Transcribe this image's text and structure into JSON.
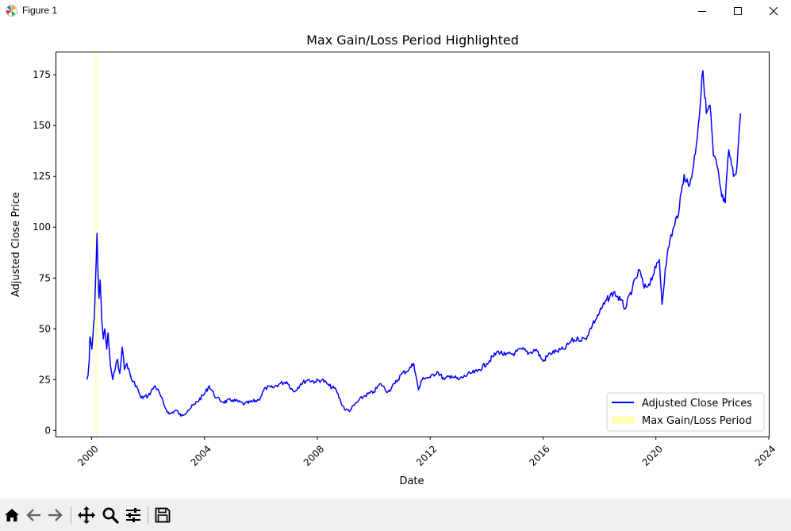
{
  "window": {
    "title": "Figure 1",
    "icon": "matplotlib-icon",
    "controls": [
      "minimize-icon",
      "maximize-icon",
      "close-icon"
    ]
  },
  "toolbar": {
    "buttons": [
      "home-icon",
      "back-icon",
      "forward-icon",
      "pan-icon",
      "zoom-icon",
      "configure-subplots-icon",
      "save-icon"
    ]
  },
  "chart_data": {
    "type": "line",
    "title": "Max Gain/Loss Period Highlighted",
    "xlabel": "Date",
    "ylabel": "Adjusted Close Price",
    "xlim": [
      "1998-10-01",
      "2024-01-01"
    ],
    "ylim": [
      -3,
      186
    ],
    "x_ticks": [
      "2000",
      "2004",
      "2008",
      "2012",
      "2016",
      "2020",
      "2024"
    ],
    "y_ticks": [
      0,
      25,
      50,
      75,
      100,
      125,
      150,
      175
    ],
    "grid": false,
    "legend": {
      "placement": "lower-right",
      "entries": [
        "Adjusted Close Prices",
        "Max Gain/Loss Period"
      ]
    },
    "colors": {
      "line": "#0000ff",
      "highlight": "#ffff66"
    },
    "highlight_period": {
      "start": "2000-02-18",
      "end": "2000-03-10",
      "label": "Max Gain/Loss Period"
    },
    "series": [
      {
        "name": "Adjusted Close Prices",
        "points": [
          [
            "1999-11-01",
            25
          ],
          [
            "1999-11-15",
            27
          ],
          [
            "1999-12-01",
            35
          ],
          [
            "1999-12-10",
            46
          ],
          [
            "1999-12-20",
            44
          ],
          [
            "2000-01-05",
            40
          ],
          [
            "2000-01-20",
            48
          ],
          [
            "2000-02-05",
            55
          ],
          [
            "2000-02-18",
            70
          ],
          [
            "2000-03-01",
            85
          ],
          [
            "2000-03-10",
            97
          ],
          [
            "2000-03-20",
            82
          ],
          [
            "2000-04-05",
            65
          ],
          [
            "2000-04-20",
            74
          ],
          [
            "2000-05-10",
            55
          ],
          [
            "2000-06-01",
            45
          ],
          [
            "2000-06-20",
            50
          ],
          [
            "2000-07-15",
            40
          ],
          [
            "2000-08-01",
            48
          ],
          [
            "2000-09-01",
            32
          ],
          [
            "2000-10-01",
            25
          ],
          [
            "2000-11-01",
            30
          ],
          [
            "2000-12-01",
            35
          ],
          [
            "2001-01-01",
            28
          ],
          [
            "2001-02-01",
            41
          ],
          [
            "2001-03-01",
            30
          ],
          [
            "2001-04-01",
            33
          ],
          [
            "2001-06-01",
            25
          ],
          [
            "2001-08-01",
            22
          ],
          [
            "2001-10-01",
            16
          ],
          [
            "2002-01-01",
            17
          ],
          [
            "2002-04-01",
            22
          ],
          [
            "2002-06-01",
            18
          ],
          [
            "2002-08-01",
            12
          ],
          [
            "2002-10-01",
            8
          ],
          [
            "2003-01-01",
            10
          ],
          [
            "2003-03-01",
            7
          ],
          [
            "2003-06-01",
            10
          ],
          [
            "2003-09-01",
            13
          ],
          [
            "2004-01-01",
            18
          ],
          [
            "2004-03-01",
            22
          ],
          [
            "2004-06-01",
            16
          ],
          [
            "2004-09-01",
            14
          ],
          [
            "2005-01-01",
            15
          ],
          [
            "2005-06-01",
            13
          ],
          [
            "2005-12-01",
            15
          ],
          [
            "2006-03-01",
            21
          ],
          [
            "2006-06-01",
            21
          ],
          [
            "2006-09-01",
            23
          ],
          [
            "2006-12-01",
            24
          ],
          [
            "2007-03-01",
            19
          ],
          [
            "2007-06-01",
            23
          ],
          [
            "2007-09-01",
            25
          ],
          [
            "2007-12-01",
            24
          ],
          [
            "2008-03-01",
            25
          ],
          [
            "2008-06-01",
            22
          ],
          [
            "2008-09-01",
            20
          ],
          [
            "2008-11-01",
            14
          ],
          [
            "2009-01-01",
            10
          ],
          [
            "2009-03-01",
            10
          ],
          [
            "2009-06-01",
            14
          ],
          [
            "2009-09-01",
            17
          ],
          [
            "2010-01-01",
            19
          ],
          [
            "2010-04-01",
            23
          ],
          [
            "2010-07-01",
            19
          ],
          [
            "2010-10-01",
            23
          ],
          [
            "2011-01-01",
            28
          ],
          [
            "2011-04-01",
            30
          ],
          [
            "2011-06-01",
            33
          ],
          [
            "2011-08-01",
            20
          ],
          [
            "2011-10-01",
            26
          ],
          [
            "2012-01-01",
            26
          ],
          [
            "2012-04-01",
            29
          ],
          [
            "2012-07-01",
            25
          ],
          [
            "2012-10-01",
            27
          ],
          [
            "2013-01-01",
            25
          ],
          [
            "2013-06-01",
            28
          ],
          [
            "2013-09-01",
            29
          ],
          [
            "2014-01-01",
            33
          ],
          [
            "2014-06-01",
            39
          ],
          [
            "2014-09-01",
            37
          ],
          [
            "2015-01-01",
            38
          ],
          [
            "2015-04-01",
            40
          ],
          [
            "2015-07-01",
            38
          ],
          [
            "2015-10-01",
            40
          ],
          [
            "2016-01-01",
            34
          ],
          [
            "2016-04-01",
            38
          ],
          [
            "2016-07-01",
            39
          ],
          [
            "2016-10-01",
            40
          ],
          [
            "2017-01-01",
            44
          ],
          [
            "2017-04-01",
            45
          ],
          [
            "2017-07-01",
            45
          ],
          [
            "2017-10-01",
            52
          ],
          [
            "2018-01-01",
            58
          ],
          [
            "2018-04-01",
            64
          ],
          [
            "2018-07-01",
            68
          ],
          [
            "2018-10-01",
            64
          ],
          [
            "2018-12-01",
            60
          ],
          [
            "2019-03-01",
            70
          ],
          [
            "2019-06-01",
            79
          ],
          [
            "2019-08-01",
            70
          ],
          [
            "2019-10-01",
            72
          ],
          [
            "2020-01-01",
            80
          ],
          [
            "2020-02-15",
            84
          ],
          [
            "2020-03-20",
            62
          ],
          [
            "2020-05-01",
            80
          ],
          [
            "2020-07-01",
            94
          ],
          [
            "2020-09-01",
            101
          ],
          [
            "2020-11-01",
            110
          ],
          [
            "2021-01-01",
            126
          ],
          [
            "2021-03-01",
            120
          ],
          [
            "2021-05-01",
            130
          ],
          [
            "2021-07-01",
            150
          ],
          [
            "2021-09-01",
            177
          ],
          [
            "2021-10-15",
            156
          ],
          [
            "2021-12-01",
            160
          ],
          [
            "2022-01-15",
            135
          ],
          [
            "2022-03-01",
            130
          ],
          [
            "2022-05-01",
            115
          ],
          [
            "2022-06-15",
            112
          ],
          [
            "2022-08-01",
            138
          ],
          [
            "2022-10-01",
            125
          ],
          [
            "2022-11-15",
            130
          ],
          [
            "2022-12-15",
            148
          ],
          [
            "2023-01-01",
            156
          ]
        ]
      }
    ]
  }
}
